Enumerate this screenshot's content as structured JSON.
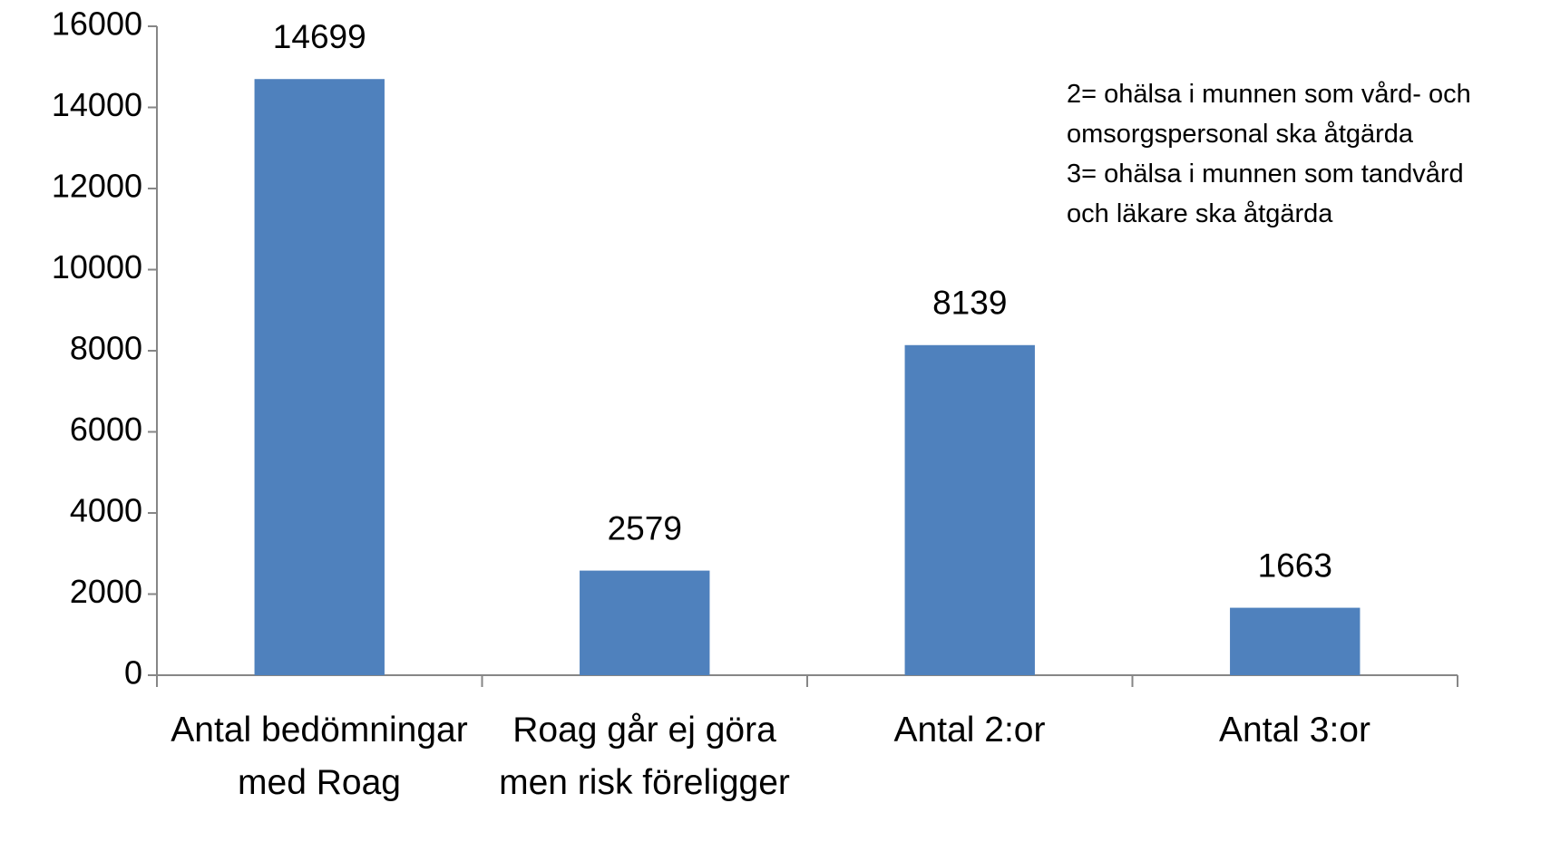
{
  "chart_data": {
    "type": "bar",
    "categories": [
      "Antal bedömningar med Roag",
      "Roag går ej göra men risk föreligger",
      "Antal 2:or",
      "Antal 3:or"
    ],
    "values": [
      14699,
      2579,
      8139,
      1663
    ],
    "color": "#4f81bd",
    "ylim": [
      0,
      16000
    ],
    "yticks": [
      0,
      2000,
      4000,
      6000,
      8000,
      10000,
      12000,
      14000,
      16000
    ],
    "grid": false,
    "annotations": [
      "2= ohälsa i munnen som vård- och",
      "omsorgspersonal  ska åtgärda",
      "3= ohälsa i munnen som tandvård",
      "och läkare ska åtgärda"
    ]
  }
}
